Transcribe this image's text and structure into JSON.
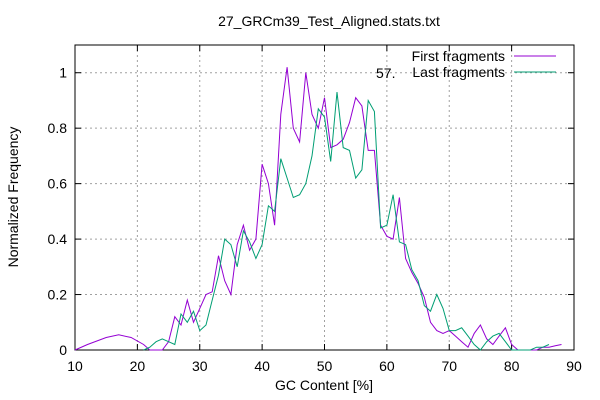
{
  "chart_data": {
    "type": "line",
    "title": "27_GRCm39_Test_Aligned.stats.txt",
    "xlabel": "GC Content [%]",
    "ylabel": "Normalized Frequency",
    "xlim": [
      10,
      90
    ],
    "ylim": [
      0,
      1.1
    ],
    "xticks": [
      10,
      20,
      30,
      40,
      50,
      60,
      70,
      80,
      90
    ],
    "yticks": [
      0,
      0.2,
      0.4,
      0.6,
      0.8,
      1
    ],
    "ytick_labels": [
      "0",
      "0.2",
      "0.4",
      "0.6",
      "0.8",
      "1"
    ],
    "grid": true,
    "legend_position": "top-right",
    "annotation": "57.",
    "series": [
      {
        "name": "First fragments",
        "color": "#9400d3",
        "x": [
          10,
          12,
          15,
          17,
          19,
          21,
          22,
          23,
          24,
          25,
          26,
          27,
          28,
          29,
          30,
          31,
          32,
          33,
          34,
          35,
          36,
          37,
          38,
          39,
          40,
          41,
          42,
          43,
          44,
          45,
          46,
          47,
          48,
          49,
          50,
          51,
          52,
          53,
          54,
          55,
          56,
          57,
          58,
          59,
          60,
          61,
          62,
          63,
          64,
          65,
          66,
          67,
          68,
          69,
          70,
          71,
          72,
          73,
          74,
          75,
          76,
          77,
          78,
          79,
          80,
          81,
          82,
          83,
          84,
          85,
          86,
          87,
          88
        ],
        "y": [
          0.0,
          0.02,
          0.045,
          0.055,
          0.045,
          0.02,
          0.0,
          0.0,
          0.0,
          0.03,
          0.12,
          0.09,
          0.18,
          0.1,
          0.15,
          0.2,
          0.21,
          0.34,
          0.25,
          0.2,
          0.38,
          0.45,
          0.36,
          0.4,
          0.67,
          0.6,
          0.45,
          0.85,
          1.02,
          0.8,
          0.75,
          1.0,
          0.85,
          0.8,
          0.91,
          0.73,
          0.74,
          0.76,
          0.82,
          0.91,
          0.88,
          0.72,
          0.72,
          0.45,
          0.41,
          0.4,
          0.55,
          0.33,
          0.28,
          0.24,
          0.19,
          0.1,
          0.07,
          0.06,
          0.07,
          0.05,
          0.03,
          0.01,
          0.06,
          0.09,
          0.04,
          0.02,
          0.05,
          0.08,
          0.02,
          0.0,
          0.0,
          0.0,
          0.0,
          0.01,
          0.01,
          0.015,
          0.02
        ]
      },
      {
        "name": "Last fragments",
        "color": "#009e73",
        "x": [
          21,
          22,
          23,
          24,
          25,
          26,
          27,
          28,
          29,
          30,
          31,
          32,
          33,
          34,
          35,
          36,
          37,
          38,
          39,
          40,
          41,
          42,
          43,
          44,
          45,
          46,
          47,
          48,
          49,
          50,
          51,
          52,
          53,
          54,
          55,
          56,
          57,
          58,
          59,
          60,
          61,
          62,
          63,
          64,
          65,
          66,
          67,
          68,
          69,
          70,
          71,
          72,
          73,
          74,
          75,
          76,
          77,
          78,
          79,
          80,
          81,
          82,
          83,
          84,
          85,
          86
        ],
        "y": [
          0.0,
          0.01,
          0.03,
          0.04,
          0.03,
          0.02,
          0.13,
          0.1,
          0.14,
          0.07,
          0.09,
          0.18,
          0.27,
          0.4,
          0.38,
          0.3,
          0.43,
          0.39,
          0.33,
          0.38,
          0.52,
          0.5,
          0.69,
          0.62,
          0.55,
          0.56,
          0.6,
          0.7,
          0.87,
          0.84,
          0.68,
          0.93,
          0.73,
          0.72,
          0.62,
          0.65,
          0.9,
          0.86,
          0.44,
          0.45,
          0.56,
          0.39,
          0.38,
          0.29,
          0.25,
          0.16,
          0.14,
          0.2,
          0.15,
          0.07,
          0.07,
          0.08,
          0.05,
          0.02,
          0.0,
          0.03,
          0.05,
          0.06,
          0.03,
          0.0,
          0.0,
          0.0,
          0.0,
          0.01,
          0.01,
          0.02
        ]
      }
    ]
  }
}
